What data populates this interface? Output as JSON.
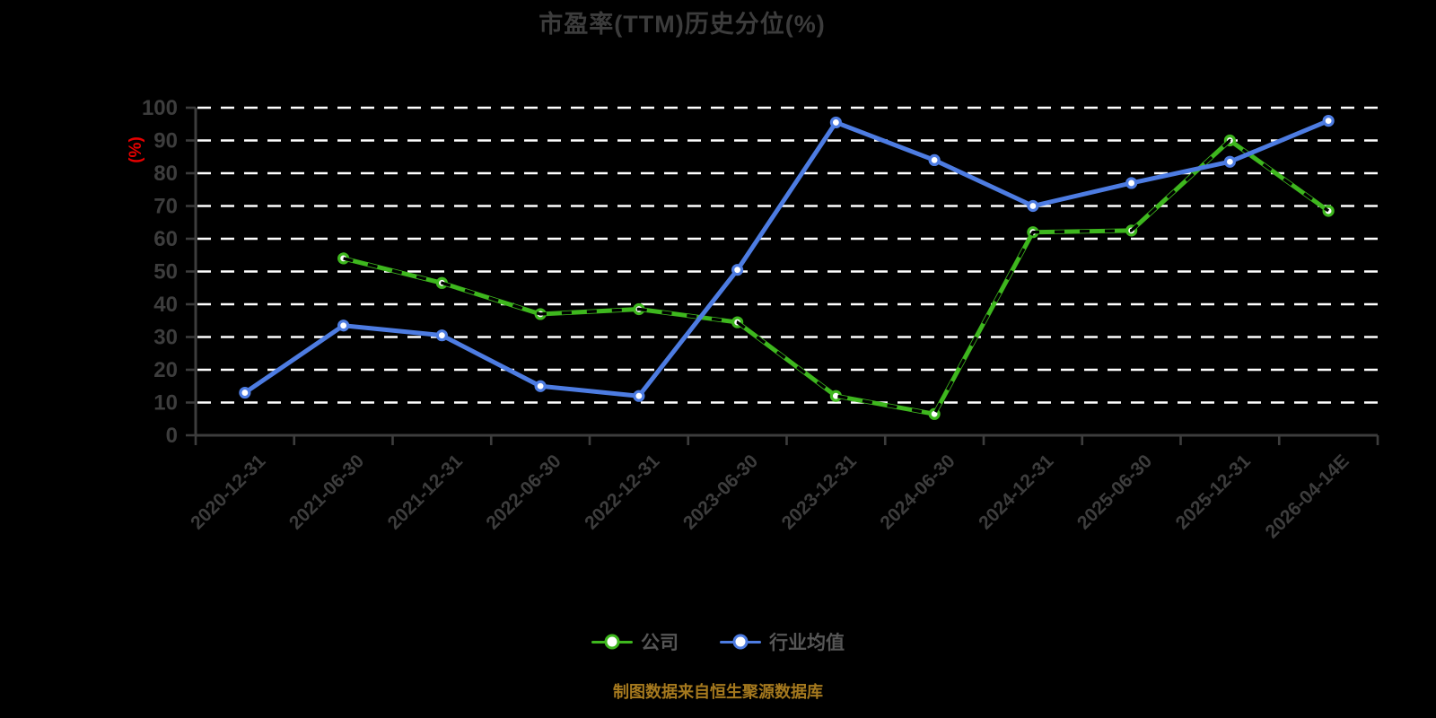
{
  "title": "市盈率(TTM)历史分位(%)",
  "y_axis_unit_label": "(%)",
  "footer_note": "制图数据来自恒生聚源数据库",
  "legend": [
    {
      "id": "company",
      "label": "公司",
      "color": "#3eb71e"
    },
    {
      "id": "industry-average",
      "label": "行业均值",
      "color": "#4d7ce2"
    }
  ],
  "colors": {
    "background": "#000000",
    "title_gray": "#3c3c3c",
    "axis_gray": "#3d3d3d",
    "grid_white": "#ffffff",
    "company_green": "#3eb71e",
    "industry_blue": "#4d7ce2",
    "marker_fill": "#ffffff",
    "dash_overlay": "#000000",
    "legend_text": "#565656",
    "footer_gold": "#a5791e",
    "unit_red": "#e60000"
  },
  "chart_data": {
    "type": "line",
    "title": "市盈率(TTM)历史分位(%)",
    "ylabel": "(%)",
    "xlabel": "",
    "ylim": [
      0,
      100
    ],
    "y_tick_step": 10,
    "y_tick_labels": [
      "0",
      "10",
      "20",
      "30",
      "40",
      "50",
      "60",
      "70",
      "80",
      "90",
      "100"
    ],
    "grid": "horizontal-white-dashed",
    "legend_position": "bottom",
    "x_label_rotation": 45,
    "categories": [
      "2020-12-31",
      "2021-06-30",
      "2021-12-31",
      "2022-06-30",
      "2022-12-31",
      "2023-06-30",
      "2023-12-31",
      "2024-06-30",
      "2024-12-31",
      "2025-06-30",
      "2025-12-31",
      "2026-04-14E"
    ],
    "series": [
      {
        "id": "company",
        "name": "公司",
        "color": "#3eb71e",
        "line_style": "solid-with-black-dash-overlay",
        "marker": "circle-white-fill",
        "values": [
          null,
          54,
          46.5,
          37,
          38.5,
          34.5,
          12,
          6.5,
          62,
          62.5,
          90,
          68.5
        ]
      },
      {
        "id": "industry-average",
        "name": "行业均值",
        "color": "#4d7ce2",
        "line_style": "solid",
        "marker": "circle-white-fill",
        "values": [
          13,
          33.5,
          30.5,
          15,
          12,
          50.5,
          95.5,
          84,
          70,
          77,
          83.5,
          96
        ]
      }
    ]
  }
}
